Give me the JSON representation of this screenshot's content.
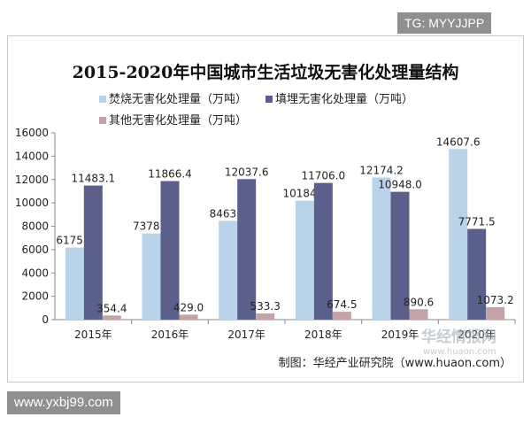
{
  "watermarks": {
    "top": "TG: MYYJJPP",
    "bottom": "www.yxbj99.com",
    "overlay": "华经情报网",
    "overlay_url": "www.huaon.com"
  },
  "source_note": "制图：华经产业研究院（www.huaon.com）",
  "colors": {
    "s1": "#b9d3e8",
    "s2": "#5a5f8c",
    "s3": "#c4a3a6",
    "axis": "#888888",
    "text": "#222222"
  },
  "chart_data": {
    "type": "bar",
    "title": "2015-2020年中国城市生活垃圾无害化处理量结构",
    "categories": [
      "2015年",
      "2016年",
      "2017年",
      "2018年",
      "2019年",
      "2020年"
    ],
    "series": [
      {
        "name": "焚烧无害化处理量（万吨）",
        "values": [
          6175.5,
          7378.4,
          8463.3,
          10184.9,
          12174.2,
          14607.6
        ]
      },
      {
        "name": "填埋无害化处理量（万吨）",
        "values": [
          11483.1,
          11866.4,
          12037.6,
          11706.0,
          10948.0,
          7771.5
        ]
      },
      {
        "name": "其他无害化处理量（万吨）",
        "values": [
          354.4,
          429.0,
          533.3,
          674.5,
          890.6,
          1073.2
        ]
      }
    ],
    "value_labels": [
      [
        "6175.5",
        "7378.4",
        "8463.3",
        "10184.9",
        "12174.2",
        "14607.6"
      ],
      [
        "11483.1",
        "11866.4",
        "12037.6",
        "11706.0",
        "10948.0",
        "7771.5"
      ],
      [
        "354.4",
        "429.0",
        "533.3",
        "674.5",
        "890.6",
        "1073.2"
      ]
    ],
    "ylim": [
      0,
      16000
    ],
    "yticks": [
      0,
      2000,
      4000,
      6000,
      8000,
      10000,
      12000,
      14000,
      16000
    ],
    "ytick_labels": [
      "0",
      "2000",
      "4000",
      "6000",
      "8000",
      "10000",
      "12000",
      "14000",
      "16000"
    ],
    "grid": false,
    "legend": "top-center"
  }
}
